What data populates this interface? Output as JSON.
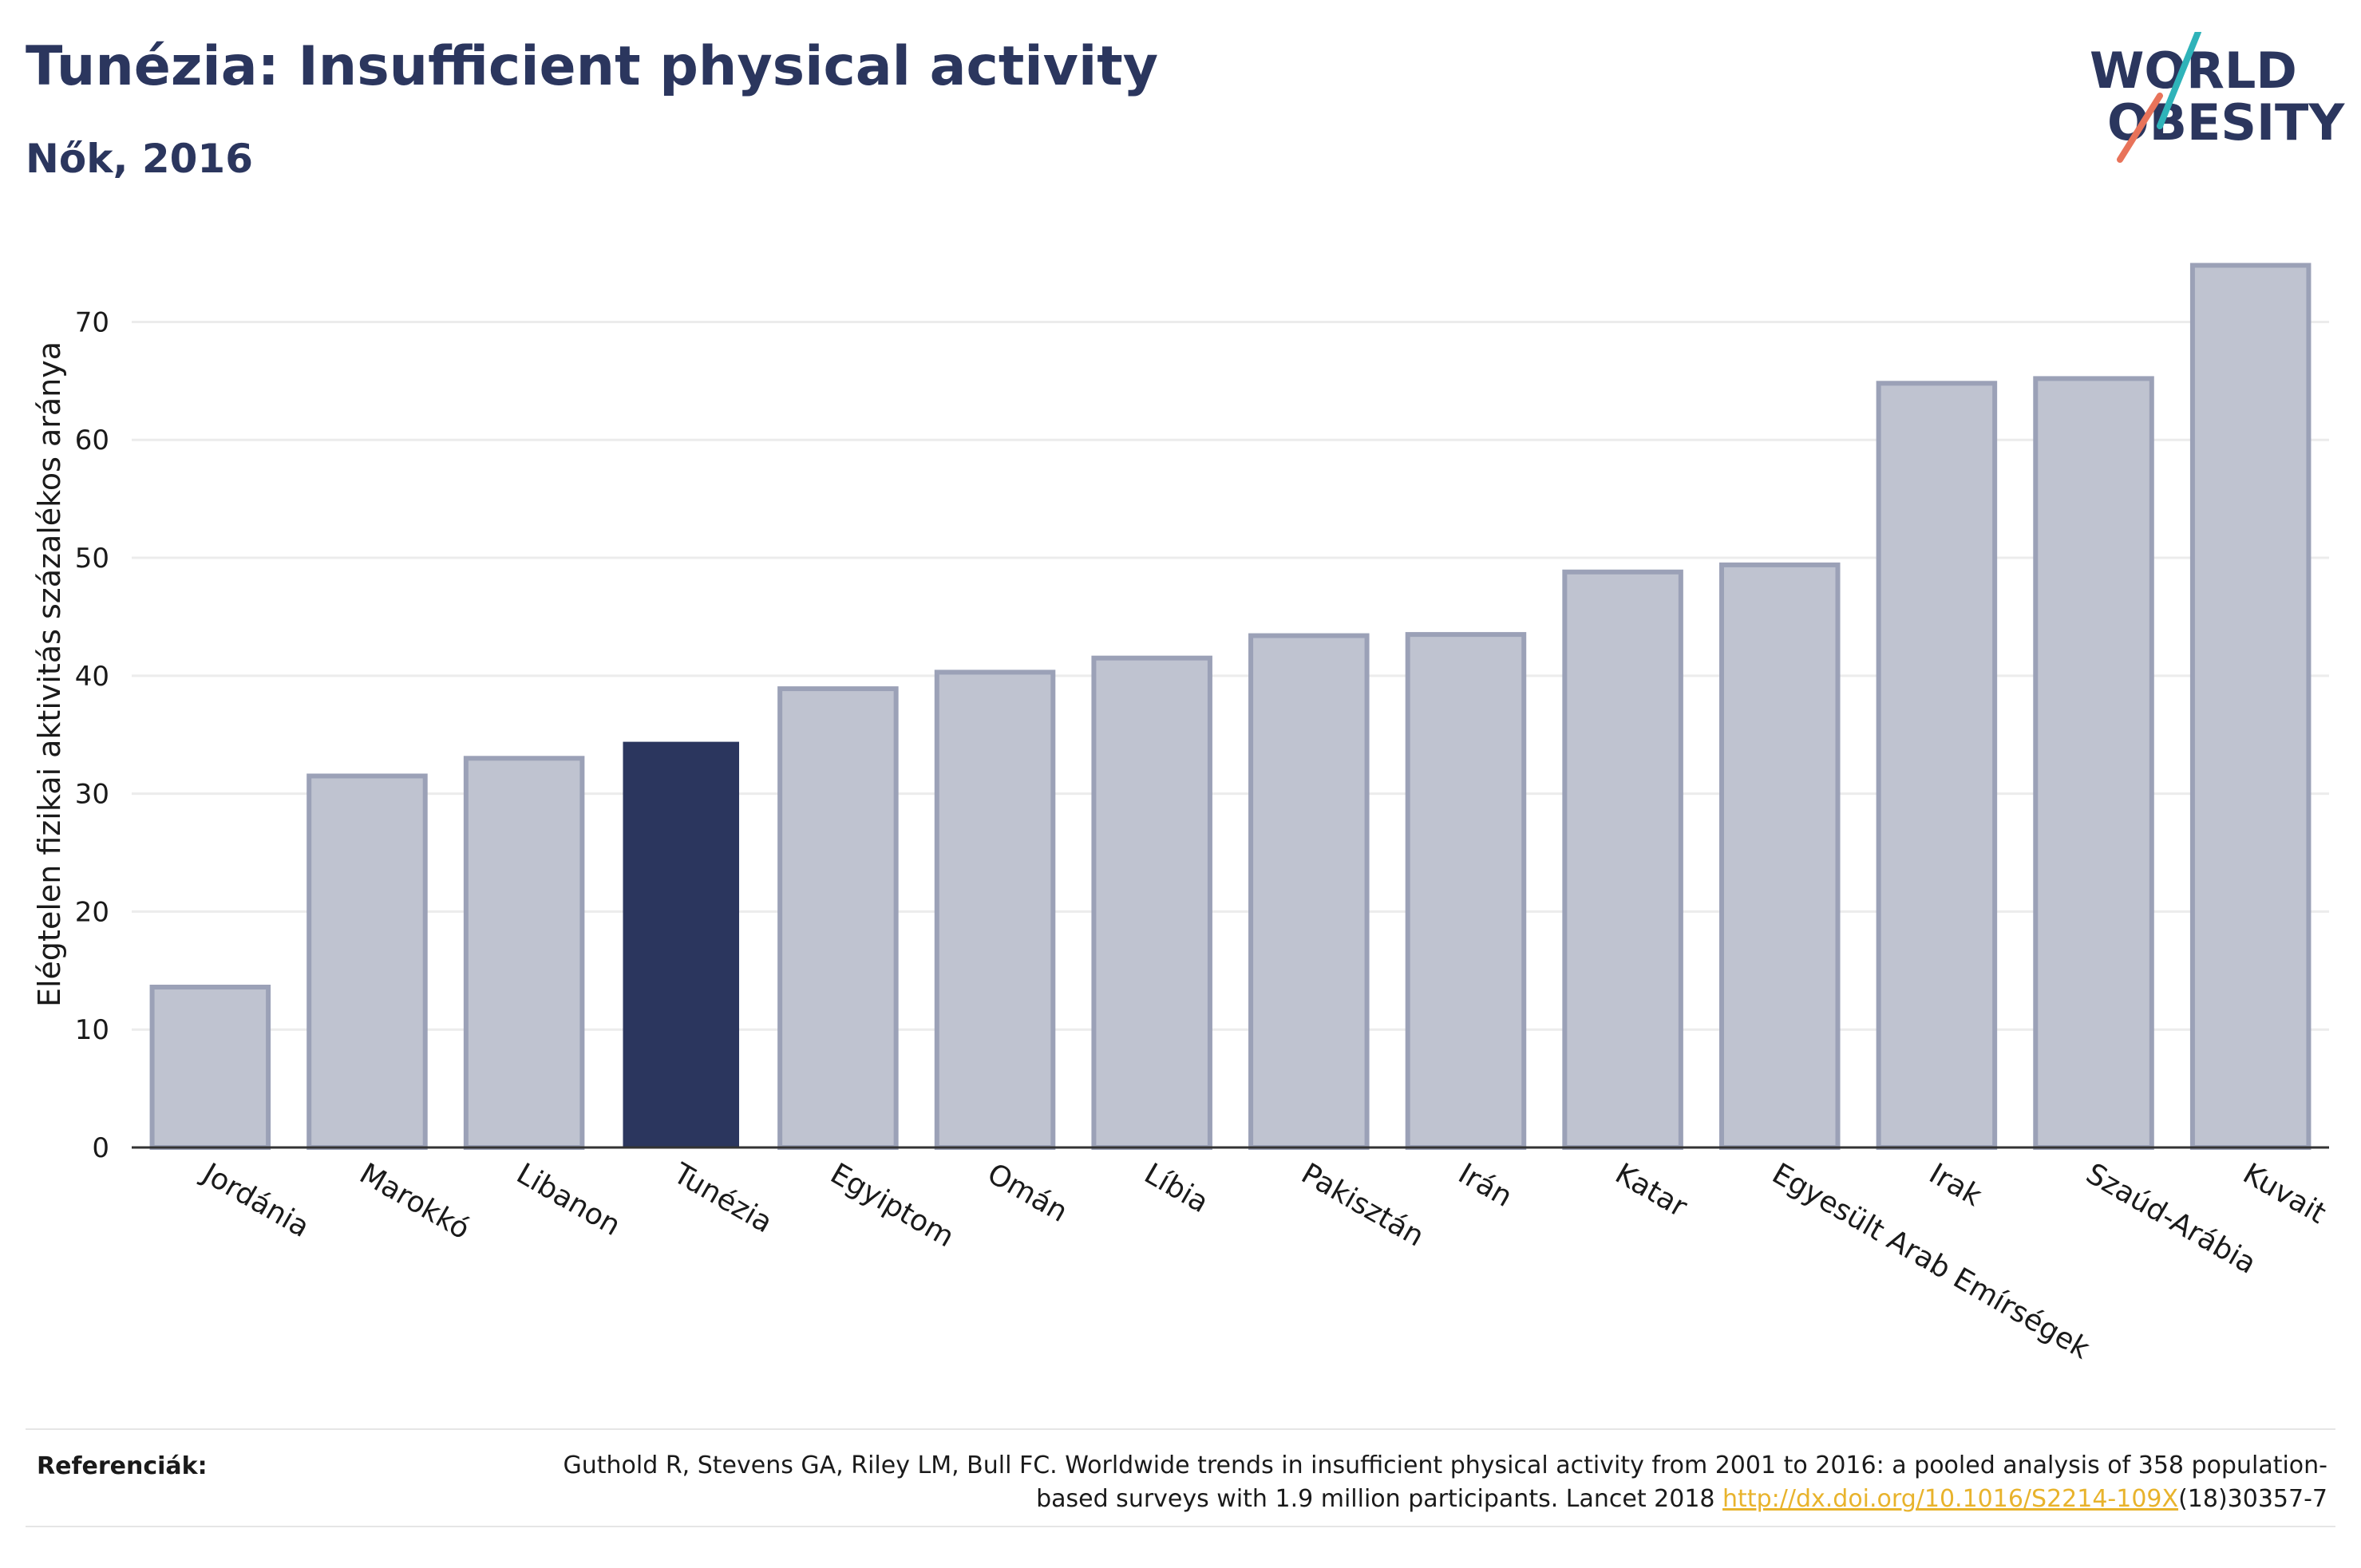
{
  "header": {
    "title": "Tunézia: Insufficient physical activity",
    "subtitle": "Nők, 2016"
  },
  "logo": {
    "line1": "WORLD",
    "line2": "OBESITY",
    "colors": {
      "text": "#2b365e",
      "teal": "#2fb3b9",
      "coral": "#e8735a"
    }
  },
  "chart_data": {
    "type": "bar",
    "ylabel": "Elégtelen fizikai aktivitás százalékos aránya",
    "ylim": [
      0,
      77
    ],
    "yticks": [
      0,
      10,
      20,
      30,
      40,
      50,
      60,
      70
    ],
    "grid": true,
    "categories": [
      "Jordánia",
      "Marokkó",
      "Libanon",
      "Tunézia",
      "Egyiptom",
      "Omán",
      "Líbia",
      "Pakisztán",
      "Irán",
      "Katar",
      "Egyesült Arab Emírségek",
      "Irak",
      "Szaúd-Arábia",
      "Kuvait"
    ],
    "values": [
      13.6,
      31.5,
      33.0,
      34.4,
      38.9,
      40.3,
      41.5,
      43.4,
      43.5,
      48.8,
      49.4,
      64.8,
      65.2,
      74.8
    ],
    "highlight": "Tunézia",
    "colors": {
      "bar": "#bfc3d0",
      "bar_border": "#9ba1b7",
      "highlight": "#2b365e"
    }
  },
  "references": {
    "label": "Referenciák:",
    "text": "Guthold R, Stevens GA, Riley LM, Bull FC. Worldwide trends in insufficient physical activity from 2001 to 2016: a pooled analysis of 358 population-based surveys with 1.9 million participants. Lancet 2018",
    "link": "http://dx.doi.org/10.1016/S2214-109X",
    "suffix": "(18)30357-7"
  }
}
